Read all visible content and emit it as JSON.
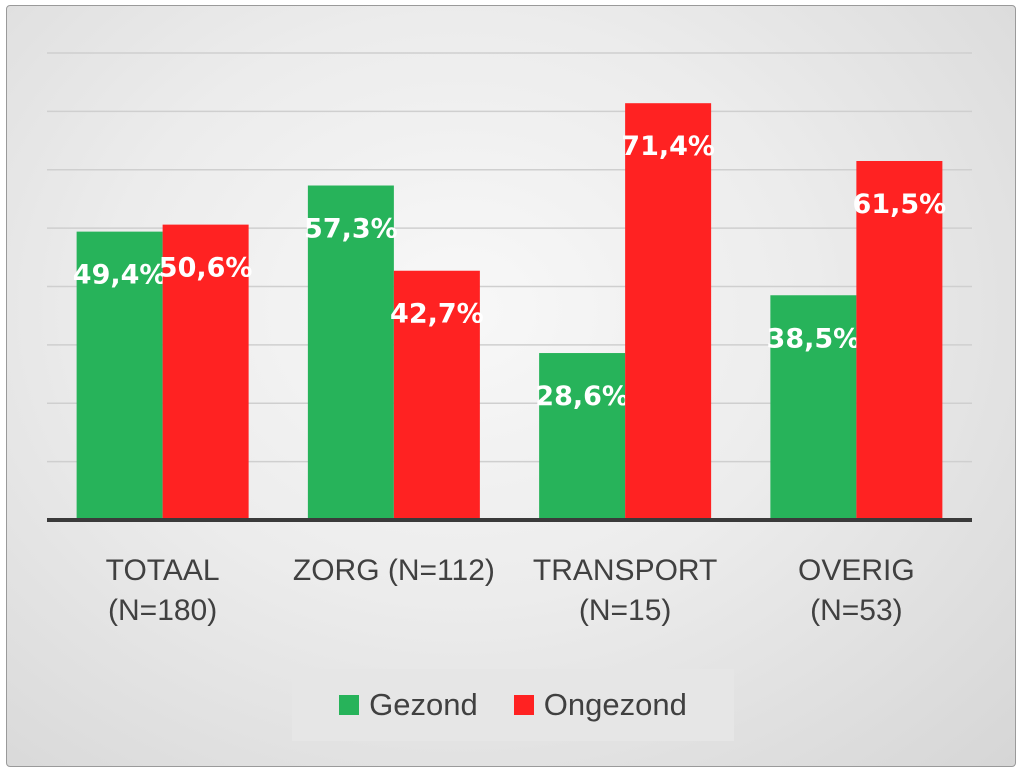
{
  "chart_data": {
    "type": "bar",
    "title": "",
    "xlabel": "",
    "ylabel": "",
    "categories": [
      [
        "TOTAAL",
        "(N=180)"
      ],
      [
        "ZORG (N=112)",
        ""
      ],
      [
        "TRANSPORT",
        "(N=15)"
      ],
      [
        "OVERIG",
        "(N=53)"
      ]
    ],
    "series": [
      {
        "name": "Gezond",
        "color": "#27b35a",
        "values": [
          49.4,
          57.3,
          28.6,
          38.5
        ],
        "labels": [
          "49,4%",
          "57,3%",
          "28,6%",
          "38,5%"
        ]
      },
      {
        "name": "Ongezond",
        "color": "#ff2222",
        "values": [
          50.6,
          42.7,
          71.4,
          61.5
        ],
        "labels": [
          "50,6%",
          "42,7%",
          "71,4%",
          "61,5%"
        ]
      }
    ],
    "ylim": [
      0,
      80
    ],
    "grid": true,
    "legend": "bottom"
  }
}
